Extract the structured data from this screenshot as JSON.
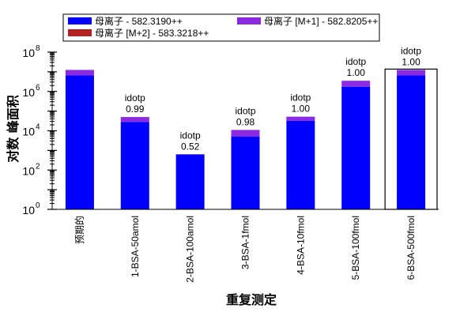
{
  "chart_data": {
    "type": "bar",
    "stacked": true,
    "title": "",
    "xlabel": "重复测定",
    "ylabel": "对数 峰面积",
    "yscale": "log",
    "ylim": [
      1,
      100000000
    ],
    "ytick_labels": [
      {
        "base": "10",
        "exp": "0",
        "value": 1
      },
      {
        "base": "10",
        "exp": "2",
        "value": 100
      },
      {
        "base": "10",
        "exp": "4",
        "value": 10000
      },
      {
        "base": "10",
        "exp": "6",
        "value": 1000000
      },
      {
        "base": "10",
        "exp": "8",
        "value": 100000000
      }
    ],
    "legend_position": "top",
    "categories": [
      "预期的",
      "1-BSA-50amol",
      "2-BSA-100amol",
      "3-BSA-1fmol",
      "4-BSA-10fmol",
      "5-BSA-100fmol",
      "6-BSA-500fmol"
    ],
    "series": [
      {
        "name": "母离子 - 582.3190++",
        "color": "#0000ff",
        "values": [
          6500000,
          28000,
          630,
          5000,
          32000,
          1750000,
          6500000
        ]
      },
      {
        "name": "母离子 [M+1] - 582.8205++",
        "color": "#8a2be2",
        "values": [
          6000000,
          22000,
          0,
          6000,
          20000,
          1750000,
          6000000
        ]
      },
      {
        "name": "母离子 [M+2] - 583.3218++",
        "color": "#b22222",
        "values": [
          0,
          0,
          0,
          0,
          0,
          0,
          0
        ]
      }
    ],
    "annotations": [
      {
        "category": "1-BSA-50amol",
        "label": "idotp",
        "value": "0.99"
      },
      {
        "category": "2-BSA-100amol",
        "label": "idotp",
        "value": "0.52"
      },
      {
        "category": "3-BSA-1fmol",
        "label": "idotp",
        "value": "0.98"
      },
      {
        "category": "4-BSA-10fmol",
        "label": "idotp",
        "value": "1.00"
      },
      {
        "category": "5-BSA-100fmol",
        "label": "idotp",
        "value": "1.00"
      },
      {
        "category": "6-BSA-500fmol",
        "label": "idotp",
        "value": "1.00"
      }
    ],
    "highlighted_category": "6-BSA-500fmol"
  }
}
